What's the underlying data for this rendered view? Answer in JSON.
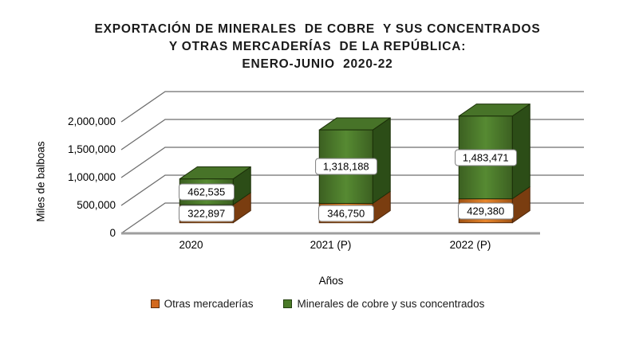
{
  "title": {
    "lines": [
      "EXPORTACIÓN DE MINERALES  DE COBRE  Y SUS CONCENTRADOS",
      "Y OTRAS MERCADERÍAS  DE LA REPÚBLICA:",
      "ENERO-JUNIO  2020-22"
    ]
  },
  "chart_data": {
    "type": "bar",
    "subtype": "3d-stacked-column",
    "title": "EXPORTACIÓN DE MINERALES DE COBRE Y SUS CONCENTRADOS Y OTRAS MERCADERÍAS DE LA REPÚBLICA: ENERO-JUNIO 2020-22",
    "xlabel": "Años",
    "ylabel": "Miles de balboas",
    "categories": [
      "2020",
      "2021 (P)",
      "2022 (P)"
    ],
    "series": [
      {
        "name": "Otras mercaderías",
        "values": [
          322897,
          346750,
          429380
        ],
        "value_labels": [
          "322,897",
          "346,750",
          "429,380"
        ],
        "colors": {
          "front_center": "#E8862C",
          "front_edge": "#A05314",
          "top": "#C96F1F",
          "side": "#7A3D10",
          "stroke": "#4E2608",
          "legend_fill": "#D2691E",
          "legend_border": "#5C2E0C"
        }
      },
      {
        "name": "Minerales de cobre y sus concentrados",
        "values": [
          462535,
          1318188,
          1483471
        ],
        "value_labels": [
          "462,535",
          "1,318,188",
          "1,483,471"
        ],
        "colors": {
          "front_center": "#568A32",
          "front_edge": "#3C6021",
          "top": "#477328",
          "side": "#2C4D17",
          "stroke": "#1C3009",
          "legend_fill": "#4A7A28",
          "legend_border": "#23400F"
        }
      }
    ],
    "ylim": [
      0,
      2000000
    ],
    "ytick_step": 500000,
    "ytick_labels": [
      "0",
      "500,000",
      "1,000,000",
      "1,500,000",
      "2,000,000"
    ],
    "grid": true,
    "legend_position": "bottom",
    "gridline_color": "#6E6E6E",
    "baseline_color": "#9E9E9E"
  },
  "legend": {
    "items": [
      {
        "label": "Otras mercaderías"
      },
      {
        "label": "Minerales de cobre y sus concentrados"
      }
    ]
  }
}
